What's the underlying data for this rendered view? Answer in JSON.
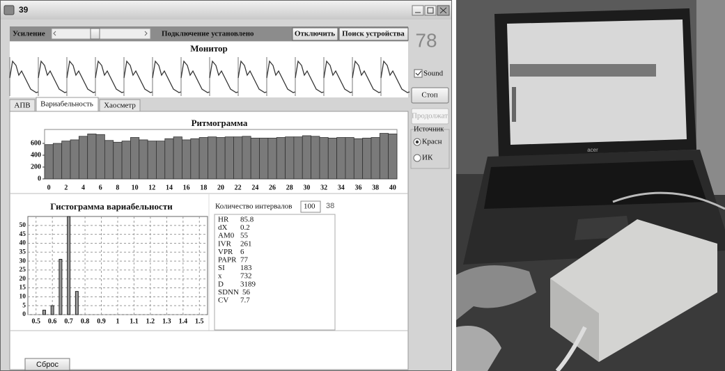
{
  "window": {
    "title": "39",
    "gain_label": "Усиление",
    "status": "Подключение установлено",
    "disconnect_button": "Отключить",
    "search_button": "Поиск устройства",
    "heart_rate": "78",
    "monitor_title": "Монитор",
    "sound_checkbox": "Sound",
    "stop_button": "Стоп",
    "continue_button": "Продолжат",
    "source_group": "Источник",
    "source_options": [
      "Красн",
      "ИК"
    ],
    "tabs": [
      "АПВ",
      "Вариабельность",
      "Хаосметр"
    ],
    "intervals_label": "Количество интервалов",
    "intervals_input": "100",
    "intervals_count": "38",
    "stats": [
      [
        "HR",
        "85.8"
      ],
      [
        "dX",
        "0.2"
      ],
      [
        "AM0",
        "55"
      ],
      [
        "IVR",
        "261"
      ],
      [
        "VPR",
        "6"
      ],
      [
        "PAPR",
        "77"
      ],
      [
        "SI",
        "183"
      ],
      [
        "x",
        "732"
      ],
      [
        "D",
        "3189"
      ],
      [
        "SDNN",
        "56"
      ],
      [
        "CV",
        "7.7"
      ]
    ],
    "reset_button": "Сброс"
  },
  "chart_data": [
    {
      "type": "bar",
      "title": "Ритмограмма",
      "categories": [
        0,
        null,
        2,
        null,
        4,
        null,
        6,
        null,
        8,
        null,
        10,
        null,
        12,
        null,
        14,
        null,
        16,
        null,
        18,
        null,
        20,
        null,
        22,
        null,
        24,
        null,
        26,
        null,
        28,
        null,
        30,
        null,
        32,
        null,
        34,
        null,
        36,
        null,
        38,
        null,
        40
      ],
      "values": [
        580,
        600,
        640,
        660,
        720,
        760,
        750,
        650,
        620,
        640,
        700,
        660,
        640,
        640,
        680,
        710,
        660,
        680,
        700,
        710,
        700,
        710,
        710,
        720,
        690,
        690,
        690,
        700,
        710,
        710,
        730,
        720,
        700,
        690,
        700,
        700,
        680,
        690,
        700,
        770,
        760
      ],
      "color": "#7a7a7a",
      "ylim": [
        0,
        800
      ],
      "yticks": [
        0,
        200,
        400,
        600
      ],
      "grid": false
    },
    {
      "type": "histogram",
      "title": "Гистограмма вариабельности",
      "x": [
        0.55,
        0.6,
        0.65,
        0.7,
        0.75
      ],
      "values": [
        2.5,
        5,
        31,
        55,
        13
      ],
      "color": "#9a9a9a",
      "xlim": [
        0.45,
        1.55
      ],
      "xticks": [
        0.5,
        0.6,
        0.7,
        0.8,
        0.9,
        1,
        1.1,
        1.2,
        1.3,
        1.4,
        1.5
      ],
      "ylim": [
        0,
        55
      ],
      "yticks": [
        0,
        5,
        10,
        15,
        20,
        25,
        30,
        35,
        40,
        45,
        50
      ],
      "grid": true
    }
  ],
  "photo": {
    "laptop_brand": "acer"
  }
}
